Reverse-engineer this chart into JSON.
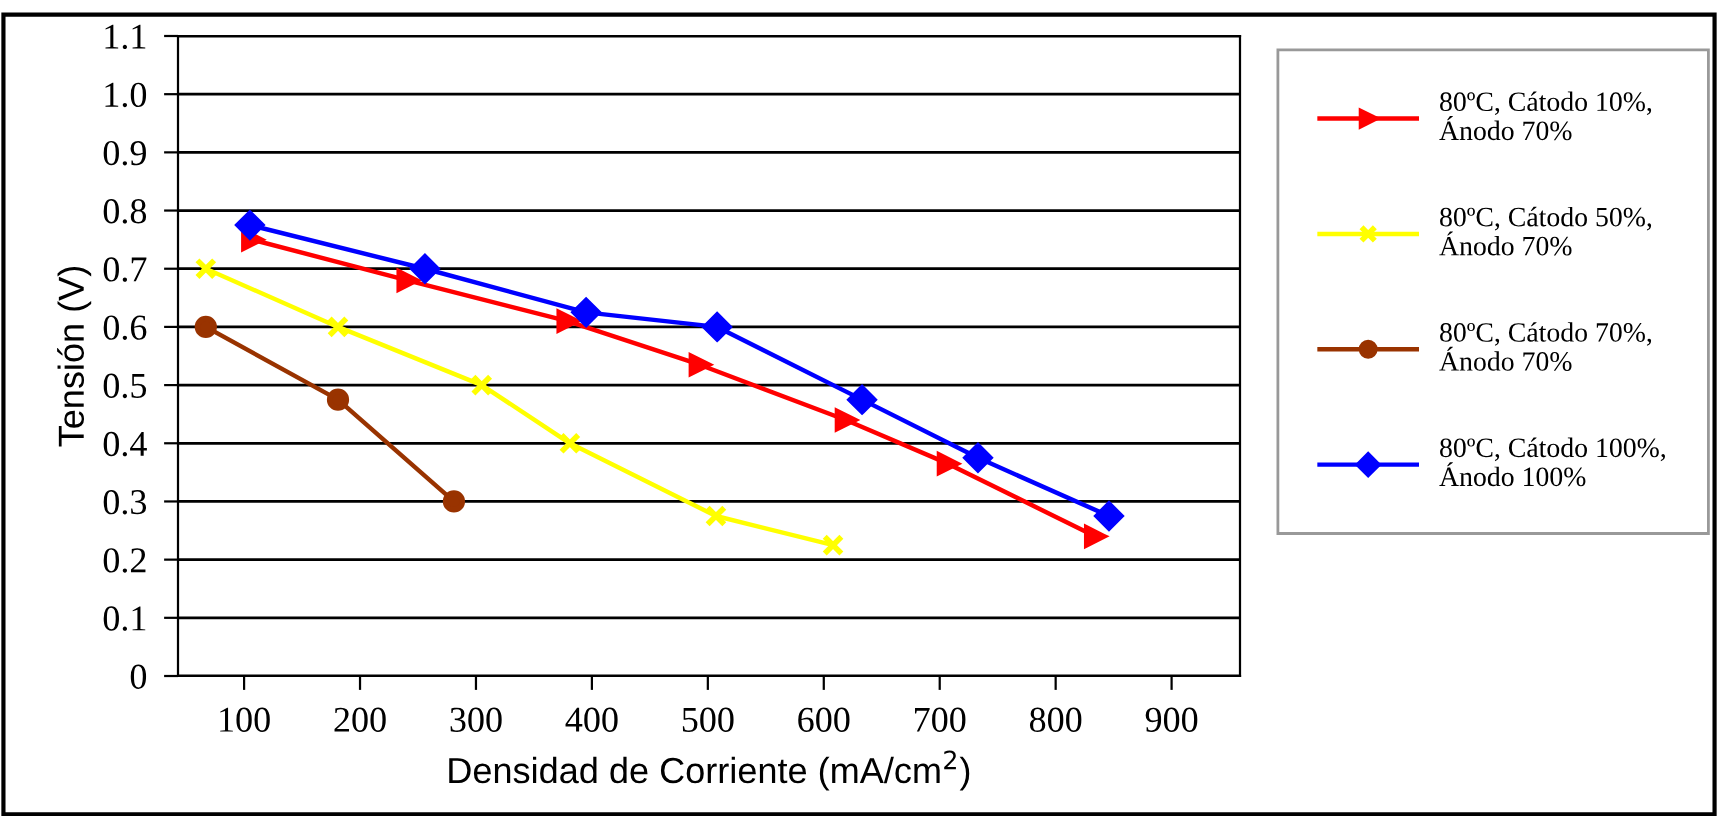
{
  "chart_data": {
    "type": "line",
    "xlabel": "Densidad de Corriente (mA/cm$^{2}$)",
    "ylabel": "Tensión (V)",
    "xlim": [
      43,
      959
    ],
    "xticks": [
      100,
      200,
      300,
      400,
      500,
      600,
      700,
      800,
      900
    ],
    "ylim": [
      0,
      1.1
    ],
    "yticks": [
      {
        "value": 0,
        "label": "0"
      },
      0.1,
      0.2,
      0.3,
      0.4,
      0.5,
      0.6,
      0.7,
      0.8,
      0.9,
      {
        "value": 1.0,
        "label": "1.0"
      },
      1.1
    ],
    "grid": "y",
    "legend": "right",
    "series": [
      {
        "name": "80ºC, Cátodo 10%,\nÁnodo 70%",
        "color": "#ff0000",
        "marker": "triangle",
        "x": [
          107,
          241,
          379,
          493,
          619,
          707,
          834
        ],
        "values": [
          0.75,
          0.68,
          0.61,
          0.535,
          0.44,
          0.365,
          0.24
        ]
      },
      {
        "name": "80ºC, Cátodo 50%,\nÁnodo 70%",
        "color": "#ffff00",
        "marker": "cross",
        "x": [
          67,
          181,
          305,
          381,
          507,
          608
        ],
        "values": [
          0.7,
          0.6,
          0.5,
          0.4,
          0.275,
          0.225
        ]
      },
      {
        "name": "80ºC, Cátodo 70%,\nÁnodo 70%",
        "color": "#993300",
        "marker": "circle",
        "x": [
          67,
          181,
          281
        ],
        "values": [
          0.6,
          0.475,
          0.3
        ]
      },
      {
        "name": "80ºC, Cátodo 100%,\nÁnodo 100%",
        "color": "#0000ff",
        "marker": "diamond",
        "x": [
          105,
          256,
          395,
          508,
          633,
          733,
          846
        ],
        "values": [
          0.775,
          0.7,
          0.625,
          0.6,
          0.475,
          0.375,
          0.275
        ]
      }
    ]
  }
}
